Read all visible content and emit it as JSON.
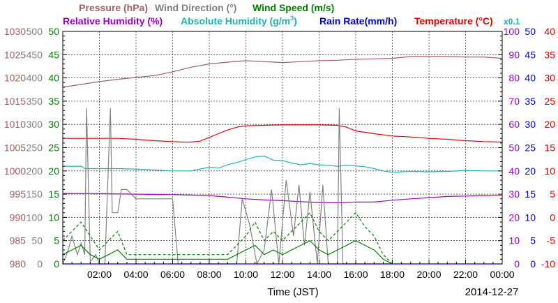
{
  "chart_data": {
    "type": "line",
    "date_label": "2014-12-27",
    "xlabel": "Time (JST)",
    "x_ticks": [
      "02:00",
      "04:00",
      "06:00",
      "08:00",
      "10:00",
      "12:00",
      "14:00",
      "16:00",
      "18:00",
      "20:00",
      "22:00",
      "00:00"
    ],
    "x_range_hours": [
      0,
      24
    ],
    "legend": {
      "row1": [
        {
          "text": "Pressure (hPa)",
          "color": "#a06060"
        },
        {
          "text": "Wind Direction (°)",
          "color": "#808080"
        },
        {
          "text": "Wind Speed (m/s)",
          "color": "#008000"
        }
      ],
      "row2": [
        {
          "text": "Relative Humidity (%)",
          "color": "#9900cc"
        },
        {
          "text": "Absolute Humidity (g/m",
          "sup": "3",
          "tail": ")",
          "color": "#20b2b2"
        },
        {
          "text": "Rain Rate(mm/h)",
          "color": "#0000cc"
        },
        {
          "text": "Temperature (°C)",
          "color": "#e60000"
        },
        {
          "text": "x0.1",
          "color": "#20b2b2"
        }
      ]
    },
    "axes": {
      "pressure": {
        "ticks": [
          "1030",
          "1025",
          "1020",
          "1015",
          "1010",
          "1005",
          "1000",
          "995",
          "990",
          "985",
          "980"
        ],
        "color": "#a06060",
        "range": [
          980,
          1030
        ]
      },
      "wind_direction": {
        "ticks": [
          "500",
          "450",
          "400",
          "350",
          "300",
          "250",
          "200",
          "150",
          "100",
          "50",
          "0"
        ],
        "color": "#808080",
        "range": [
          0,
          500
        ]
      },
      "wind_speed": {
        "ticks": [
          "50",
          "45",
          "40",
          "35",
          "30",
          "25",
          "20",
          "15",
          "10",
          "5",
          "0"
        ],
        "color": "#008000",
        "range": [
          0,
          50
        ]
      },
      "relative_humidity": {
        "ticks": [
          "100",
          "90",
          "80",
          "70",
          "60",
          "50",
          "40",
          "30",
          "20",
          "10",
          "0"
        ],
        "color": "#9900cc",
        "range": [
          0,
          100
        ]
      },
      "rain_rate": {
        "ticks": [
          "50",
          "45",
          "40",
          "35",
          "30",
          "25",
          "20",
          "15",
          "10",
          "5",
          "0"
        ],
        "color": "#0000cc",
        "range": [
          0,
          50
        ]
      },
      "temperature": {
        "ticks": [
          "40",
          "35",
          "30",
          "25",
          "20",
          "15",
          "10",
          "5",
          "0",
          "-5",
          "-10"
        ],
        "color": "#e60000",
        "range": [
          -10,
          40
        ]
      }
    },
    "series": [
      {
        "name": "Pressure (hPa)",
        "color": "#a06060",
        "axis": "pressure",
        "x": [
          0,
          1,
          2,
          3,
          4,
          5,
          6,
          7,
          8,
          9,
          10,
          11,
          12,
          13,
          14,
          15,
          16,
          17,
          18,
          19,
          20,
          21,
          22,
          23,
          24
        ],
        "y": [
          1018.0,
          1018.6,
          1019.2,
          1019.7,
          1020.1,
          1020.5,
          1021.3,
          1022.3,
          1023.0,
          1023.4,
          1023.7,
          1023.5,
          1023.3,
          1023.5,
          1023.7,
          1023.8,
          1024.0,
          1024.1,
          1024.2,
          1024.6,
          1024.6,
          1024.6,
          1024.5,
          1024.5,
          1024.2
        ]
      },
      {
        "name": "Temperature (°C)",
        "color": "#e60000",
        "axis": "temperature",
        "x": [
          0,
          1,
          2,
          3,
          4,
          5,
          6,
          6.5,
          7,
          7.5,
          8,
          8.5,
          9,
          9.5,
          10,
          11,
          12,
          13,
          14,
          15,
          15.5,
          16,
          17,
          18,
          19,
          20,
          21,
          22,
          23,
          24
        ],
        "y": [
          17.0,
          17.0,
          17.0,
          17.0,
          16.8,
          16.5,
          16.3,
          16.2,
          16.2,
          16.4,
          17.2,
          18.0,
          18.8,
          19.4,
          19.7,
          19.8,
          19.9,
          19.9,
          19.9,
          19.8,
          19.4,
          18.6,
          18.0,
          17.5,
          17.3,
          17.0,
          16.8,
          16.5,
          16.3,
          16.2
        ]
      },
      {
        "name": "Absolute Humidity (g/m³) x0.1",
        "color": "#20b2b2",
        "axis": "rain_rate",
        "x": [
          0,
          1,
          1.2,
          2,
          3,
          4,
          5,
          6,
          7,
          7.5,
          8,
          8.5,
          9,
          9.5,
          10,
          10.5,
          11,
          11.5,
          12,
          12.5,
          13,
          13.5,
          14,
          14.5,
          15,
          15.5,
          16,
          16.5,
          17,
          17.5,
          18,
          19,
          20,
          21,
          22,
          23,
          24
        ],
        "y": [
          21.0,
          21.0,
          20.5,
          20.5,
          20.5,
          20.4,
          20.2,
          20.0,
          20.0,
          20.4,
          20.8,
          20.6,
          21.3,
          21.8,
          22.4,
          23.0,
          23.2,
          22.3,
          22.2,
          21.7,
          21.3,
          21.6,
          21.3,
          21.2,
          21.0,
          21.2,
          21.1,
          20.9,
          20.5,
          20.0,
          19.7,
          19.9,
          19.8,
          19.9,
          20.1,
          20.0,
          20.0
        ]
      },
      {
        "name": "Relative Humidity (%)",
        "color": "#9900cc",
        "axis": "relative_humidity",
        "x": [
          0,
          2,
          4,
          6,
          8,
          9,
          10,
          11,
          12,
          13,
          14,
          15,
          16,
          17,
          18,
          19,
          20,
          21,
          22,
          23,
          24
        ],
        "y": [
          30.3,
          30.2,
          30.0,
          29.8,
          29.4,
          28.7,
          28.0,
          27.5,
          27.2,
          26.8,
          26.4,
          26.3,
          26.6,
          26.6,
          27.4,
          28.0,
          28.5,
          29.0,
          29.2,
          29.4,
          29.5
        ]
      },
      {
        "name": "Wind Direction (°)",
        "color": "#808080",
        "axis": "wind_direction",
        "x": [
          0,
          0.3,
          0.5,
          0.8,
          1.0,
          1.2,
          1.3,
          1.5,
          1.8,
          2.0,
          2.3,
          2.6,
          2.7,
          2.8,
          3.0,
          3.2,
          3.5,
          4.0,
          5.0,
          6.0,
          6.3,
          6.5,
          7.0,
          8.0,
          9.0,
          9.5,
          9.8,
          10.2,
          10.6,
          11.0,
          11.4,
          11.8,
          12.2,
          12.6,
          12.9,
          13.2,
          13.5,
          13.9,
          14.2,
          14.5,
          15.0,
          15.1,
          15.3,
          15.6,
          16.0,
          16.5,
          17.0,
          17.5,
          18.0
        ],
        "y": [
          0,
          30,
          60,
          20,
          45,
          20,
          335,
          5,
          20,
          0,
          0,
          335,
          110,
          110,
          110,
          160,
          160,
          140,
          140,
          140,
          0,
          0,
          0,
          0,
          0,
          0,
          140,
          85,
          0,
          30,
          160,
          0,
          180,
          60,
          170,
          40,
          155,
          0,
          170,
          0,
          0,
          335,
          0,
          0,
          0,
          0,
          0,
          0,
          0
        ]
      },
      {
        "name": "Wind Speed (m/s)",
        "color": "#008000",
        "axis": "wind_speed",
        "x": [
          0,
          0.5,
          1.0,
          1.5,
          2.0,
          2.5,
          3.0,
          3.5,
          4.0,
          5.0,
          6.0,
          7.0,
          8.0,
          9.0,
          9.5,
          10.0,
          10.5,
          11.0,
          11.5,
          12.0,
          12.5,
          13.0,
          13.5,
          14.0,
          14.5,
          15.0,
          15.5,
          16.0,
          16.5,
          17.0,
          17.5,
          18.0
        ],
        "y": [
          2,
          3,
          4,
          2,
          1,
          2,
          3,
          1,
          1,
          1,
          1,
          1,
          1,
          1,
          2,
          3,
          4,
          2,
          3,
          2,
          3,
          4,
          5,
          3,
          2,
          3,
          4,
          5,
          4,
          3,
          1,
          0
        ]
      },
      {
        "name": "Wind Speed max (m/s)",
        "color": "#008000",
        "axis": "wind_speed",
        "dashed": true,
        "x": [
          0,
          0.5,
          1.0,
          1.5,
          2.0,
          2.5,
          3.0,
          3.5,
          4.0,
          5.0,
          6.0,
          7.0,
          8.0,
          9.0,
          9.5,
          10.0,
          10.5,
          11.0,
          11.5,
          12.0,
          12.5,
          13.0,
          13.5,
          14.0,
          14.5,
          15.0,
          15.5,
          16.0,
          16.5,
          17.0,
          17.5,
          18.0
        ],
        "y": [
          5,
          7,
          9,
          6,
          3,
          5,
          7,
          2,
          2,
          2,
          2,
          2,
          2,
          2,
          4,
          6,
          9,
          5,
          7,
          5,
          7,
          9,
          11,
          7,
          5,
          7,
          9,
          11,
          8,
          6,
          2,
          0
        ]
      },
      {
        "name": "Rain Rate(mm/h)",
        "color": "#0000cc",
        "axis": "rain_rate",
        "x": [
          0,
          24
        ],
        "y": [
          0,
          0
        ]
      }
    ]
  }
}
